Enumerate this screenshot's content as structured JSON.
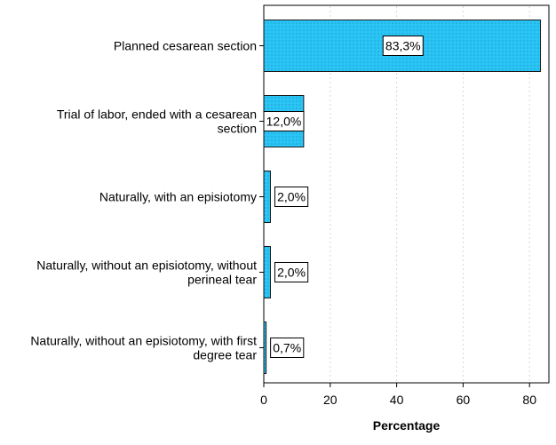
{
  "chart_data": {
    "type": "bar",
    "orientation": "horizontal",
    "categories": [
      [
        "Planned cesarean section"
      ],
      [
        "Trial of labor, ended with a cesarean",
        "section"
      ],
      [
        "Naturally, with an episiotomy"
      ],
      [
        "Naturally, without an episiotomy, without",
        "perineal tear"
      ],
      [
        "Naturally, without an episiotomy, with first",
        "degree tear"
      ]
    ],
    "values": [
      83.3,
      12.0,
      2.0,
      2.0,
      0.7
    ],
    "data_labels": [
      "83,3%",
      "12,0%",
      "2,0%",
      "2,0%",
      "0,7%"
    ],
    "xlabel": "Percentage",
    "ylabel": "",
    "xlim": [
      0,
      85
    ],
    "xticks": [
      0,
      20,
      40,
      60,
      80
    ],
    "grid": "vertical-dotted",
    "colors": {
      "bar_fill": "#29c5f6",
      "bar_stroke": "#1a1a1a",
      "frame": "#000000",
      "grid": "#d8d8d8"
    }
  }
}
